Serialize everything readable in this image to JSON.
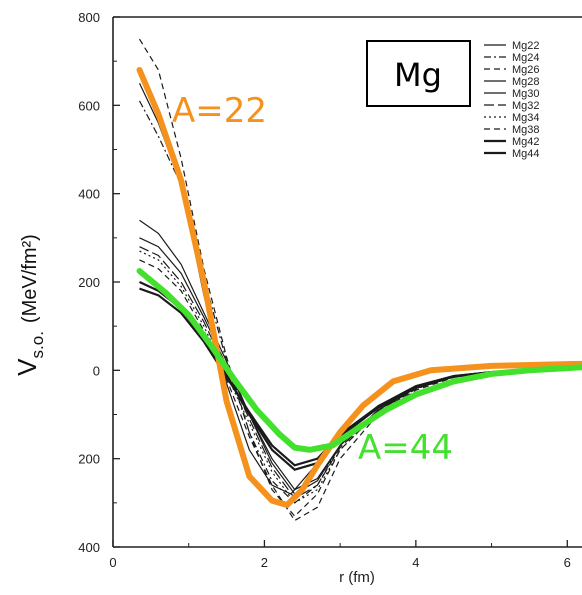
{
  "chart_data": {
    "type": "line",
    "title": "Mg",
    "xlabel": "r (fm)",
    "ylabel_main": "V",
    "ylabel_sub": "s.o.",
    "ylabel_unit": "(MeV/fm²)",
    "xlim": [
      0,
      6.3
    ],
    "ylim": [
      -400,
      800
    ],
    "x_ticks": [
      0,
      2,
      4,
      6
    ],
    "x_tick_labels": [
      "0",
      "2",
      "4",
      "6"
    ],
    "y_ticks": [
      800,
      600,
      400,
      200,
      0,
      -200,
      -400
    ],
    "y_tick_labels": [
      "800",
      "600",
      "400",
      "200",
      "0",
      "200",
      "400"
    ],
    "legend_position": "top-right",
    "legend_entries": [
      "Mg22",
      "Mg24",
      "Mg26",
      "Mg28",
      "Mg30",
      "Mg32",
      "Mg34",
      "Mg38",
      "Mg42",
      "Mg44"
    ],
    "series": [
      {
        "name": "Mg22",
        "style": "solid",
        "x": [
          0.35,
          0.6,
          0.9,
          1.2,
          1.5,
          1.8,
          2.1,
          2.35,
          2.6,
          3.0,
          3.5,
          4.0,
          4.5,
          5.0,
          5.5,
          6.0,
          6.3
        ],
        "y": [
          650,
          560,
          420,
          170,
          -30,
          -180,
          -260,
          -280,
          -230,
          -150,
          -80,
          -35,
          -12,
          -3,
          3,
          8,
          10
        ]
      },
      {
        "name": "Mg24",
        "style": "dashdot",
        "x": [
          0.35,
          0.6,
          0.9,
          1.2,
          1.5,
          1.8,
          2.1,
          2.4,
          2.7,
          3.0,
          3.5,
          4.0,
          4.5,
          5.0,
          5.5,
          6.0,
          6.3
        ],
        "y": [
          610,
          530,
          420,
          210,
          20,
          -140,
          -250,
          -300,
          -260,
          -170,
          -90,
          -40,
          -15,
          -4,
          2,
          6,
          8
        ]
      },
      {
        "name": "Mg26",
        "style": "dashed",
        "x": [
          0.35,
          0.6,
          0.9,
          1.2,
          1.5,
          1.8,
          2.1,
          2.4,
          2.7,
          3.0,
          3.5,
          4.0,
          4.5,
          5.0,
          5.5,
          6.0,
          6.3
        ],
        "y": [
          750,
          680,
          480,
          230,
          30,
          -140,
          -270,
          -330,
          -280,
          -180,
          -95,
          -42,
          -15,
          -4,
          2,
          6,
          8
        ]
      },
      {
        "name": "Mg28",
        "style": "solid",
        "x": [
          0.35,
          0.6,
          0.9,
          1.2,
          1.5,
          1.8,
          2.1,
          2.4,
          2.7,
          3.0,
          3.5,
          4.0,
          4.5,
          5.0,
          5.5,
          6.0,
          6.3
        ],
        "y": [
          340,
          310,
          240,
          130,
          20,
          -100,
          -210,
          -280,
          -250,
          -170,
          -90,
          -40,
          -15,
          -4,
          2,
          6,
          8
        ]
      },
      {
        "name": "Mg30",
        "style": "solid",
        "x": [
          0.35,
          0.6,
          0.9,
          1.2,
          1.5,
          1.8,
          2.1,
          2.4,
          2.7,
          3.0,
          3.5,
          4.0,
          4.5,
          5.0,
          5.5,
          6.0,
          6.3
        ],
        "y": [
          300,
          280,
          220,
          120,
          10,
          -100,
          -200,
          -270,
          -245,
          -170,
          -90,
          -40,
          -15,
          -4,
          2,
          6,
          8
        ]
      },
      {
        "name": "Mg32",
        "style": "longdash",
        "x": [
          0.35,
          0.6,
          0.9,
          1.2,
          1.5,
          1.8,
          2.1,
          2.4,
          2.7,
          3.0,
          3.5,
          4.0,
          4.5,
          5.0,
          5.5,
          6.0,
          6.3
        ],
        "y": [
          280,
          260,
          200,
          110,
          0,
          -110,
          -220,
          -290,
          -260,
          -175,
          -92,
          -41,
          -15,
          -4,
          2,
          6,
          8
        ]
      },
      {
        "name": "Mg34",
        "style": "dotted",
        "x": [
          0.35,
          0.6,
          0.9,
          1.2,
          1.5,
          1.8,
          2.1,
          2.4,
          2.7,
          3.0,
          3.5,
          4.0,
          4.5,
          5.0,
          5.5,
          6.0,
          6.3
        ],
        "y": [
          270,
          250,
          190,
          100,
          -10,
          -120,
          -230,
          -300,
          -270,
          -180,
          -95,
          -42,
          -15,
          -4,
          2,
          6,
          8
        ]
      },
      {
        "name": "Mg38",
        "style": "dashed",
        "x": [
          0.35,
          0.6,
          0.9,
          1.2,
          1.5,
          1.8,
          2.1,
          2.4,
          2.7,
          3.0,
          3.5,
          4.0,
          4.5,
          5.0,
          5.5,
          6.0,
          6.3
        ],
        "y": [
          250,
          230,
          180,
          90,
          -20,
          -150,
          -260,
          -340,
          -310,
          -200,
          -100,
          -45,
          -16,
          -4,
          2,
          6,
          8
        ]
      },
      {
        "name": "Mg42",
        "style": "solid-thick",
        "x": [
          0.35,
          0.6,
          0.9,
          1.2,
          1.5,
          1.8,
          2.1,
          2.4,
          2.7,
          3.0,
          3.5,
          4.0,
          4.5,
          5.0,
          5.5,
          6.0,
          6.3
        ],
        "y": [
          200,
          180,
          140,
          70,
          -10,
          -100,
          -180,
          -225,
          -210,
          -150,
          -85,
          -38,
          -14,
          -4,
          2,
          6,
          8
        ]
      },
      {
        "name": "Mg44",
        "style": "solid-thick",
        "x": [
          0.35,
          0.6,
          0.9,
          1.2,
          1.5,
          1.8,
          2.1,
          2.4,
          2.7,
          3.0,
          3.5,
          4.0,
          4.5,
          5.0,
          5.5,
          6.0,
          6.3
        ],
        "y": [
          185,
          170,
          130,
          65,
          -15,
          -95,
          -170,
          -215,
          -200,
          -145,
          -82,
          -36,
          -13,
          -4,
          2,
          6,
          8
        ]
      }
    ],
    "highlight_lines": [
      {
        "label": "A=22",
        "color": "#f5921e",
        "x": [
          0.35,
          0.6,
          0.9,
          1.2,
          1.5,
          1.8,
          2.1,
          2.3,
          2.5,
          2.7,
          3.0,
          3.3,
          3.7,
          4.2,
          5.0,
          6.0,
          6.3
        ],
        "y": [
          680,
          580,
          430,
          200,
          -70,
          -240,
          -295,
          -305,
          -270,
          -215,
          -140,
          -80,
          -25,
          0,
          10,
          14,
          15
        ]
      },
      {
        "label": "A=44",
        "color": "#44e02e",
        "x": [
          0.35,
          0.7,
          1.0,
          1.3,
          1.6,
          1.9,
          2.2,
          2.4,
          2.6,
          2.9,
          3.2,
          3.6,
          4.0,
          4.5,
          5.0,
          5.5,
          6.0,
          6.3
        ],
        "y": [
          225,
          175,
          125,
          55,
          -20,
          -90,
          -145,
          -175,
          -180,
          -170,
          -135,
          -90,
          -55,
          -25,
          -8,
          0,
          5,
          8
        ]
      }
    ],
    "annotations": [
      {
        "text": "A=22",
        "color": "#f5921e"
      },
      {
        "text": "A=44",
        "color": "#44e02e"
      }
    ],
    "grid": false
  }
}
